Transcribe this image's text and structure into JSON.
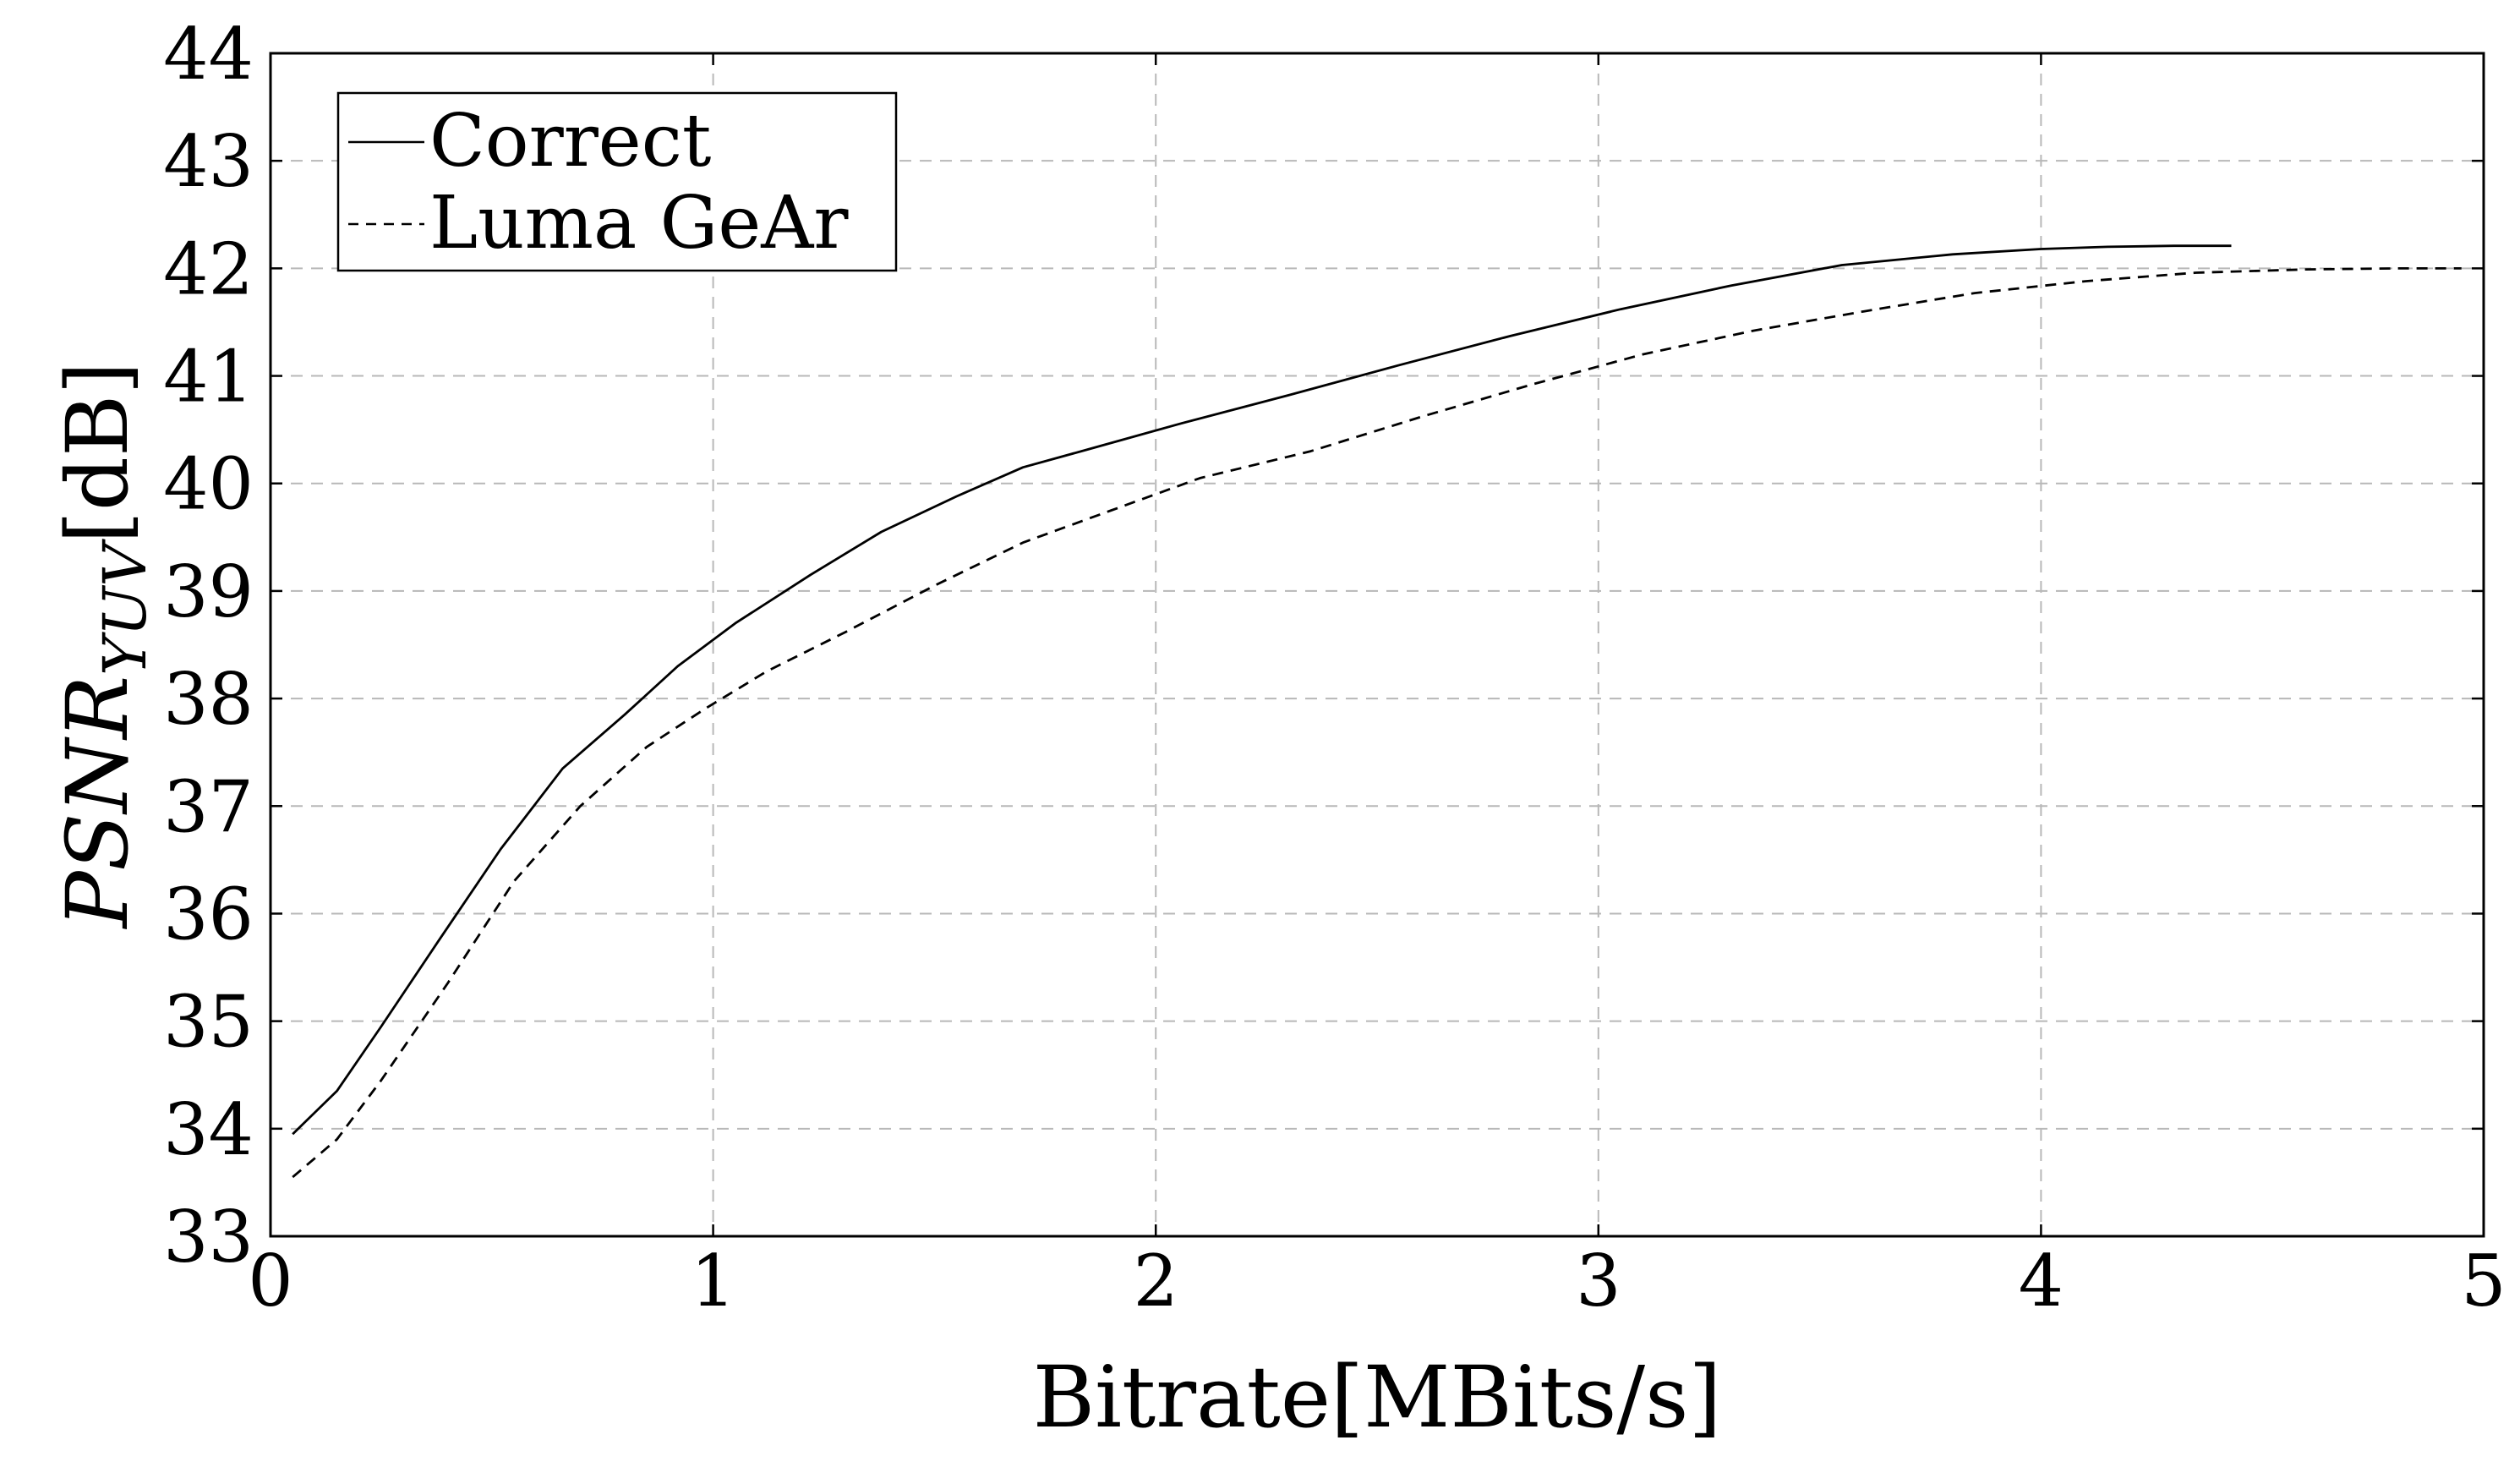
{
  "chart_data": {
    "type": "line",
    "title": "",
    "xlabel": "Bitrate[MBits/s]",
    "ylabel": {
      "main": "PSNR",
      "subscript": "YUV",
      "unit": "[dB]"
    },
    "xlim": [
      0,
      5
    ],
    "ylim": [
      33,
      44
    ],
    "xticks": [
      "0",
      "1",
      "2",
      "3",
      "4",
      "5"
    ],
    "yticks": [
      "33",
      "34",
      "35",
      "36",
      "37",
      "38",
      "39",
      "40",
      "41",
      "42",
      "43",
      "44"
    ],
    "grid": true,
    "legend_position": "top-left",
    "series": [
      {
        "name": "Correct",
        "style": "solid",
        "color": "#000000",
        "x": [
          0.05,
          0.15,
          0.25,
          0.38,
          0.52,
          0.66,
          0.8,
          0.92,
          1.05,
          1.22,
          1.38,
          1.55,
          1.7,
          1.85,
          2.05,
          2.3,
          2.55,
          2.8,
          3.05,
          3.3,
          3.55,
          3.8,
          4.0,
          4.15,
          4.3,
          4.43
        ],
        "y": [
          33.95,
          34.35,
          34.95,
          35.75,
          36.6,
          37.35,
          37.85,
          38.3,
          38.7,
          39.15,
          39.55,
          39.88,
          40.15,
          40.32,
          40.55,
          40.82,
          41.1,
          41.37,
          41.62,
          41.84,
          42.03,
          42.13,
          42.18,
          42.2,
          42.21,
          42.21
        ]
      },
      {
        "name": "Luma GeAr",
        "style": "dashed",
        "color": "#000000",
        "x": [
          0.05,
          0.15,
          0.25,
          0.4,
          0.55,
          0.7,
          0.85,
          0.98,
          1.12,
          1.3,
          1.5,
          1.7,
          1.9,
          2.1,
          2.35,
          2.6,
          2.85,
          3.1,
          3.35,
          3.6,
          3.85,
          4.1,
          4.35,
          4.6,
          4.8,
          4.95
        ],
        "y": [
          33.55,
          33.9,
          34.45,
          35.35,
          36.3,
          37.0,
          37.55,
          37.9,
          38.25,
          38.62,
          39.05,
          39.45,
          39.75,
          40.05,
          40.3,
          40.62,
          40.92,
          41.2,
          41.42,
          41.6,
          41.77,
          41.88,
          41.96,
          41.99,
          42.0,
          42.0
        ]
      }
    ]
  }
}
